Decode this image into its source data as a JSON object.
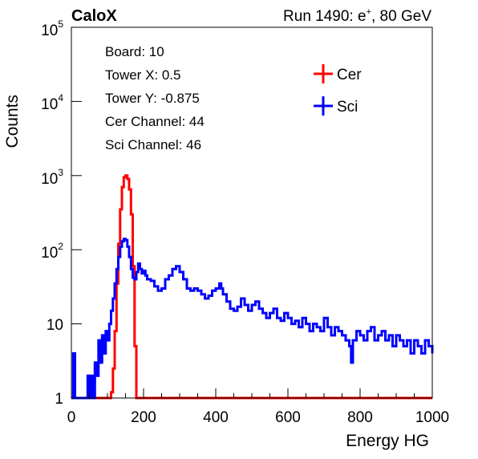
{
  "header": {
    "brand": "CaloX",
    "run_prefix": "Run 1490: e",
    "run_sup": "+",
    "run_suffix": ", 80 GeV"
  },
  "info": [
    "Board: 10",
    "Tower X: 0.5",
    "Tower Y: -0.875",
    "Cer Channel: 44",
    "Sci Channel: 46"
  ],
  "chart_data": {
    "type": "line",
    "xlabel": "Energy HG",
    "ylabel": "Counts",
    "xlim": [
      0,
      1000
    ],
    "ylim": [
      1,
      100000
    ],
    "yscale": "log",
    "x_ticks": [
      "0",
      "200",
      "400",
      "600",
      "800",
      "1000"
    ],
    "y_ticks": [
      {
        "base": "1",
        "exp": ""
      },
      {
        "base": "10",
        "exp": ""
      },
      {
        "base": "10",
        "exp": "2"
      },
      {
        "base": "10",
        "exp": "3"
      },
      {
        "base": "10",
        "exp": "4"
      },
      {
        "base": "10",
        "exp": "5"
      }
    ],
    "legend_position": "top-right",
    "series": [
      {
        "name": "Cer",
        "color": "#ff0000",
        "points": [
          [
            0,
            1
          ],
          [
            105,
            1
          ],
          [
            110,
            1.2
          ],
          [
            115,
            2.5
          ],
          [
            120,
            8
          ],
          [
            125,
            35
          ],
          [
            130,
            120
          ],
          [
            135,
            350
          ],
          [
            140,
            700
          ],
          [
            145,
            950
          ],
          [
            150,
            1000
          ],
          [
            155,
            900
          ],
          [
            160,
            650
          ],
          [
            165,
            300
          ],
          [
            170,
            60
          ],
          [
            175,
            5
          ],
          [
            180,
            1
          ],
          [
            1000,
            1
          ]
        ]
      },
      {
        "name": "Sci",
        "color": "#0000ff",
        "points": [
          [
            0,
            1
          ],
          [
            5,
            1
          ],
          [
            5,
            4
          ],
          [
            10,
            4
          ],
          [
            10,
            1
          ],
          [
            40,
            1
          ],
          [
            45,
            2
          ],
          [
            50,
            1
          ],
          [
            55,
            2
          ],
          [
            60,
            1
          ],
          [
            65,
            3
          ],
          [
            70,
            2
          ],
          [
            75,
            6
          ],
          [
            80,
            3
          ],
          [
            85,
            7
          ],
          [
            90,
            4
          ],
          [
            95,
            8
          ],
          [
            100,
            6
          ],
          [
            105,
            10
          ],
          [
            110,
            15
          ],
          [
            115,
            22
          ],
          [
            120,
            35
          ],
          [
            125,
            55
          ],
          [
            130,
            80
          ],
          [
            135,
            110
          ],
          [
            140,
            130
          ],
          [
            145,
            140
          ],
          [
            150,
            135
          ],
          [
            155,
            110
          ],
          [
            160,
            80
          ],
          [
            165,
            55
          ],
          [
            170,
            42
          ],
          [
            175,
            40
          ],
          [
            180,
            50
          ],
          [
            185,
            65
          ],
          [
            190,
            55
          ],
          [
            195,
            48
          ],
          [
            200,
            52
          ],
          [
            205,
            45
          ],
          [
            210,
            40
          ],
          [
            220,
            38
          ],
          [
            230,
            32
          ],
          [
            240,
            28
          ],
          [
            250,
            30
          ],
          [
            260,
            40
          ],
          [
            270,
            45
          ],
          [
            280,
            55
          ],
          [
            290,
            60
          ],
          [
            300,
            50
          ],
          [
            310,
            40
          ],
          [
            320,
            30
          ],
          [
            330,
            28
          ],
          [
            340,
            30
          ],
          [
            350,
            28
          ],
          [
            360,
            25
          ],
          [
            370,
            22
          ],
          [
            380,
            24
          ],
          [
            390,
            28
          ],
          [
            400,
            30
          ],
          [
            410,
            35
          ],
          [
            415,
            30
          ],
          [
            420,
            25
          ],
          [
            430,
            20
          ],
          [
            440,
            16
          ],
          [
            450,
            15
          ],
          [
            460,
            17
          ],
          [
            470,
            22
          ],
          [
            480,
            18
          ],
          [
            490,
            15
          ],
          [
            500,
            18
          ],
          [
            510,
            20
          ],
          [
            520,
            16
          ],
          [
            530,
            14
          ],
          [
            540,
            12
          ],
          [
            550,
            14
          ],
          [
            560,
            16
          ],
          [
            570,
            12
          ],
          [
            580,
            11
          ],
          [
            590,
            14
          ],
          [
            600,
            12
          ],
          [
            610,
            10
          ],
          [
            620,
            11
          ],
          [
            630,
            9
          ],
          [
            640,
            12
          ],
          [
            650,
            10
          ],
          [
            660,
            8
          ],
          [
            670,
            10
          ],
          [
            680,
            9
          ],
          [
            690,
            8
          ],
          [
            700,
            12
          ],
          [
            710,
            9
          ],
          [
            720,
            7
          ],
          [
            730,
            9
          ],
          [
            740,
            8
          ],
          [
            750,
            7
          ],
          [
            760,
            6
          ],
          [
            770,
            5
          ],
          [
            775,
            3
          ],
          [
            780,
            6
          ],
          [
            790,
            8
          ],
          [
            800,
            7
          ],
          [
            810,
            6
          ],
          [
            820,
            8
          ],
          [
            830,
            9
          ],
          [
            840,
            6
          ],
          [
            850,
            7
          ],
          [
            860,
            8
          ],
          [
            870,
            6
          ],
          [
            880,
            7
          ],
          [
            890,
            5
          ],
          [
            900,
            7
          ],
          [
            910,
            6
          ],
          [
            920,
            5
          ],
          [
            930,
            6
          ],
          [
            940,
            4
          ],
          [
            950,
            6
          ],
          [
            960,
            5
          ],
          [
            970,
            4
          ],
          [
            980,
            6
          ],
          [
            990,
            5
          ],
          [
            1000,
            4
          ]
        ]
      }
    ]
  }
}
